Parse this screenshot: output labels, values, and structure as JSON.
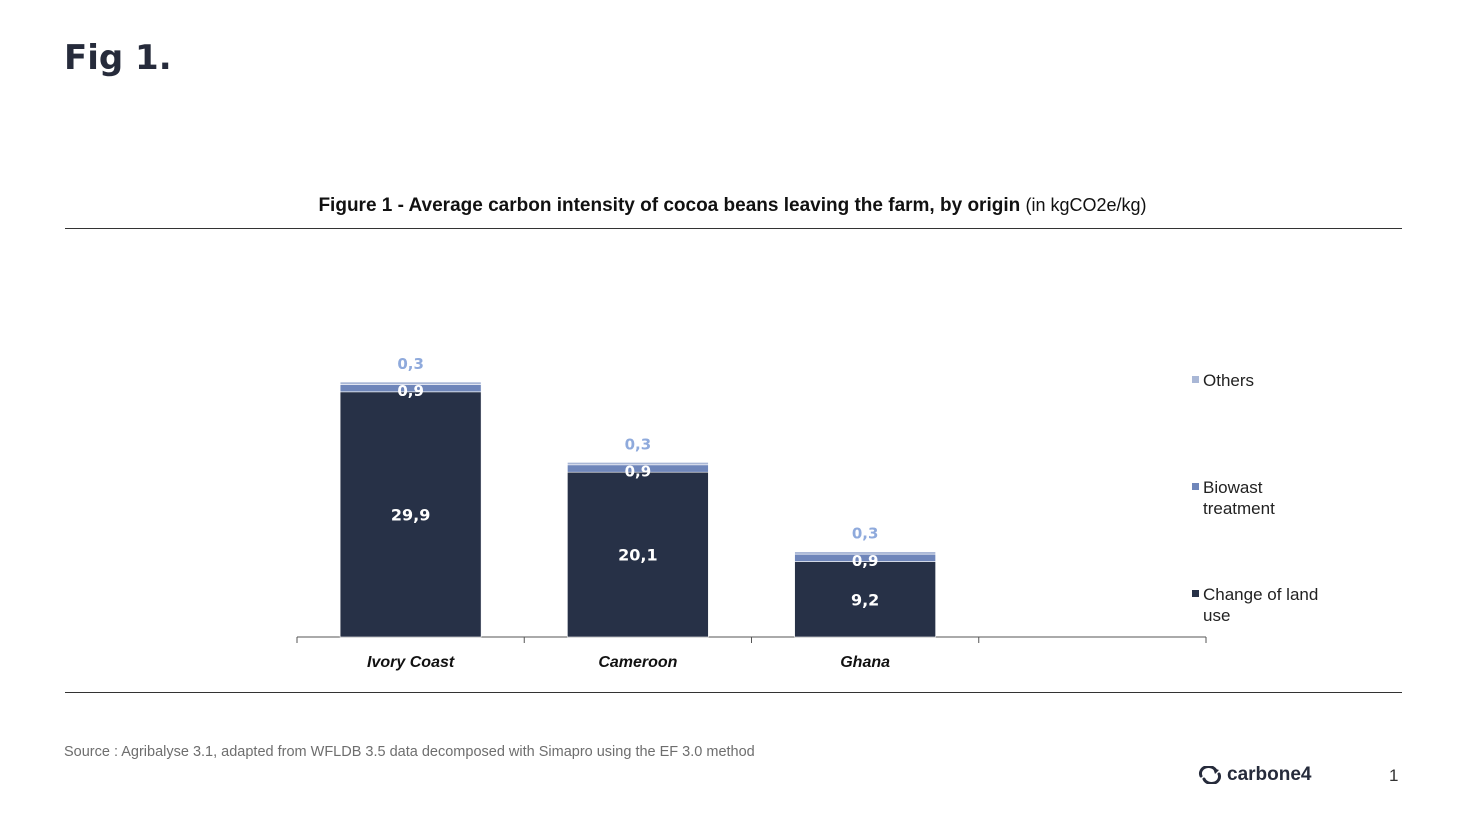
{
  "slide": {
    "title": "Fig 1.",
    "source": "Source : Agribalyse 3.1, adapted from WFLDB 3.5 data decomposed with Simapro using the EF 3.0 method",
    "logo_text": "carbone4",
    "page_number": "1"
  },
  "chart_data": {
    "type": "bar",
    "stacked": true,
    "title": "Figure 1 - Average carbon intensity of cocoa beans leaving the farm, by origin",
    "title_unit": "(in kgCO2e/kg)",
    "xlabel": "",
    "ylabel": "",
    "categories": [
      "Ivory Coast",
      "Cameroon",
      "Ghana"
    ],
    "series": [
      {
        "name": "Change of land use",
        "values": [
          29.9,
          20.1,
          9.2
        ],
        "labels": [
          "29,9",
          "20,1",
          "9,2"
        ],
        "color": "#273147"
      },
      {
        "name": "Biowast treatment",
        "values": [
          0.9,
          0.9,
          0.9
        ],
        "labels": [
          "0,9",
          "0,9",
          "0,9"
        ],
        "color": "#6f86ba"
      },
      {
        "name": "Others",
        "values": [
          0.3,
          0.3,
          0.3
        ],
        "labels": [
          "0,3",
          "0,3",
          "0,3"
        ],
        "color": "#a9b7d6"
      }
    ],
    "label_colors": {
      "inside": "#ffffff",
      "others": "#8faadc"
    },
    "legend_position": "right",
    "legend_lines": [
      [
        "Others"
      ],
      [
        "Biowast",
        "treatment"
      ],
      [
        "Change of land",
        "use"
      ]
    ],
    "grid": false,
    "ylim": [
      0,
      31.1
    ],
    "empty_category_slots": 1
  }
}
